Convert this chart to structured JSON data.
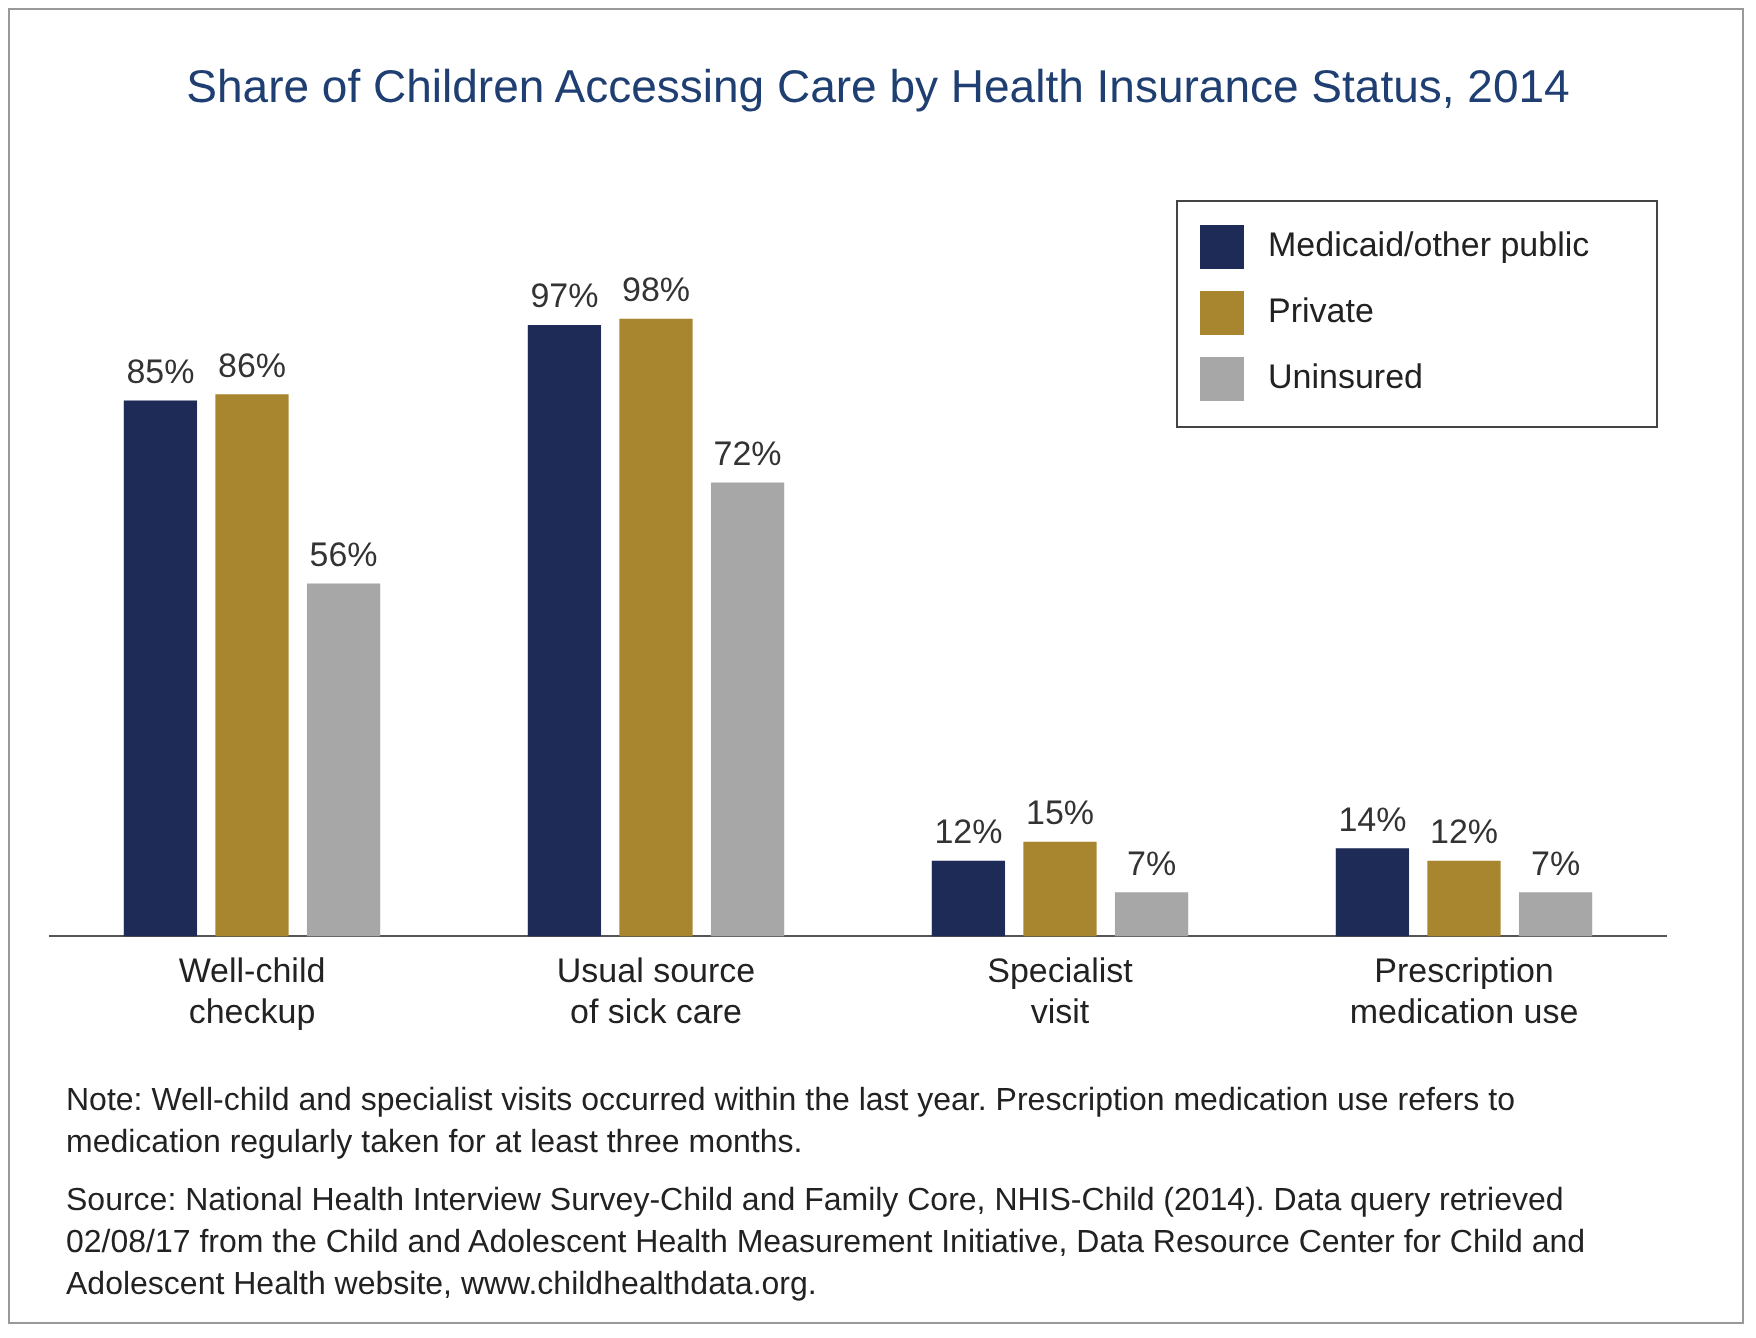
{
  "chart_data": {
    "type": "bar",
    "title": "Share of Children Accessing Care by Health Insurance Status, 2014",
    "categories": [
      "Well-child checkup",
      "Usual source of sick care",
      "Specialist visit",
      "Prescription medication use"
    ],
    "series": [
      {
        "name": "Medicaid/other public",
        "color": "#1f2b57",
        "values": [
          85,
          97,
          12,
          14
        ],
        "value_labels": [
          "85%",
          "97%",
          "12%",
          "14%"
        ]
      },
      {
        "name": "Private",
        "color": "#a8862f",
        "values": [
          86,
          98,
          15,
          12
        ],
        "value_labels": [
          "86%",
          "98%",
          "15%",
          "12%"
        ]
      },
      {
        "name": "Uninsured",
        "color": "#a7a7a7",
        "values": [
          56,
          72,
          7,
          7
        ],
        "value_labels": [
          "56%",
          "72%",
          "7%",
          "7%"
        ]
      }
    ],
    "tick_labels": "x",
    "grid": false,
    "legend": "top right",
    "annotations": [
      "Note: Well-child and specialist visits occurred within the last year. Prescription medication use refers to medication regularly taken for at least three months.",
      "Source: National Health Interview Survey-Child and Family Core, NHIS-Child (2014). Data query retrieved 02/08/17 from the Child and Adolescent Health Measurement Initiative, Data Resource Center for Child and Adolescent Health website, www.childhealthdata.org."
    ]
  }
}
